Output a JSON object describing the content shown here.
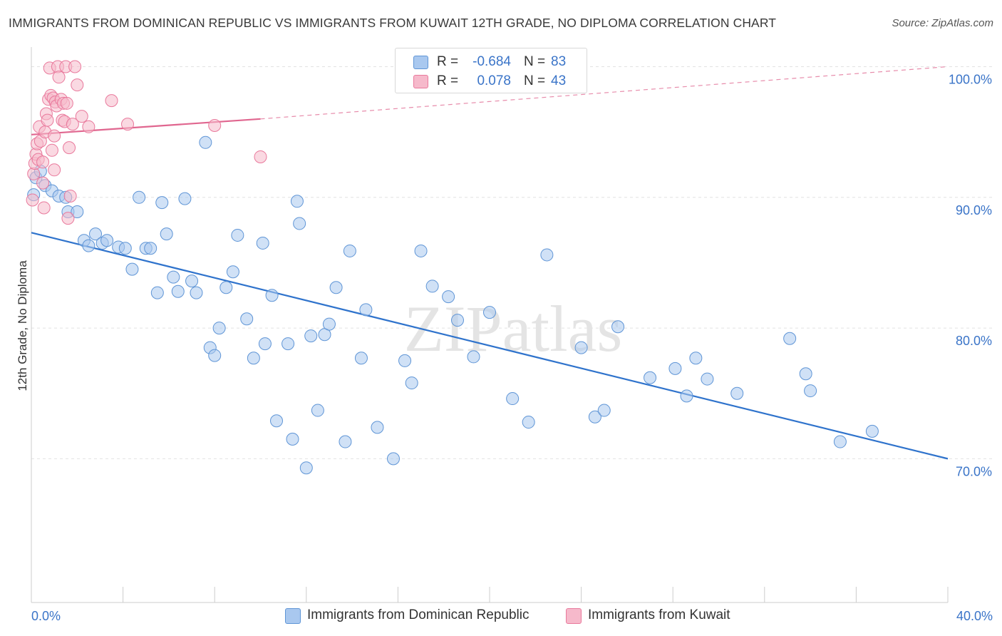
{
  "title": "IMMIGRANTS FROM DOMINICAN REPUBLIC VS IMMIGRANTS FROM KUWAIT 12TH GRADE, NO DIPLOMA CORRELATION CHART",
  "source": "Source: ZipAtlas.com",
  "watermark": "ZIPatlas",
  "legend": {
    "rows": [
      {
        "r_label": "R =",
        "r_value": "-0.684",
        "n_label": "N =",
        "n_value": "83",
        "color": "#a9c8ef",
        "value_color": "#3a74c8"
      },
      {
        "r_label": "R =",
        "r_value": "0.078",
        "n_label": "N =",
        "n_value": "43",
        "color": "#f6b9cb",
        "value_color": "#3a74c8"
      }
    ]
  },
  "colors": {
    "blue_fill": "#a9c8ef",
    "blue_stroke": "#5f95d6",
    "blue_line": "#2f73cc",
    "pink_fill": "#f6b9cb",
    "pink_stroke": "#e9799c",
    "pink_line": "#e0668f",
    "axis_text": "#3a74c8",
    "grid": "#e2e2e2"
  },
  "chart_data": {
    "type": "scatter",
    "title": "IMMIGRANTS FROM DOMINICAN REPUBLIC VS IMMIGRANTS FROM KUWAIT 12TH GRADE, NO DIPLOMA CORRELATION CHART",
    "xlabel": "",
    "ylabel": "12th Grade, No Diploma",
    "xlim": [
      0,
      40
    ],
    "ylim": [
      59,
      101.5
    ],
    "x_ticks": [
      "0.0%",
      "40.0%"
    ],
    "y_ticks": [
      {
        "value": 70,
        "label": "70.0%"
      },
      {
        "value": 80,
        "label": "80.0%"
      },
      {
        "value": 90,
        "label": "90.0%"
      },
      {
        "value": 100,
        "label": "100.0%"
      }
    ],
    "grid": true,
    "legend_position": "bottom",
    "series": [
      {
        "name": "Immigrants from Dominican Republic",
        "color": "#a9c8ef",
        "trend": {
          "x0": 0,
          "y0": 87.3,
          "x1": 40,
          "y1": 70.0,
          "dashed_to": null
        },
        "points": [
          [
            0.1,
            90.2
          ],
          [
            0.2,
            91.5
          ],
          [
            0.4,
            92.0
          ],
          [
            0.6,
            90.9
          ],
          [
            0.9,
            90.5
          ],
          [
            1.2,
            90.1
          ],
          [
            1.5,
            90.0
          ],
          [
            1.6,
            88.9
          ],
          [
            2.0,
            88.9
          ],
          [
            2.3,
            86.7
          ],
          [
            2.5,
            86.3
          ],
          [
            2.8,
            87.2
          ],
          [
            3.1,
            86.5
          ],
          [
            3.3,
            86.7
          ],
          [
            3.8,
            86.2
          ],
          [
            4.1,
            86.1
          ],
          [
            4.4,
            84.5
          ],
          [
            4.7,
            90.0
          ],
          [
            5.0,
            86.1
          ],
          [
            5.2,
            86.1
          ],
          [
            5.5,
            82.7
          ],
          [
            5.7,
            89.6
          ],
          [
            5.9,
            87.2
          ],
          [
            6.2,
            83.9
          ],
          [
            6.4,
            82.8
          ],
          [
            6.7,
            89.9
          ],
          [
            7.0,
            83.6
          ],
          [
            7.2,
            82.7
          ],
          [
            7.6,
            94.2
          ],
          [
            7.8,
            78.5
          ],
          [
            8.0,
            77.9
          ],
          [
            8.2,
            80.0
          ],
          [
            8.5,
            83.1
          ],
          [
            8.8,
            84.3
          ],
          [
            9.0,
            87.1
          ],
          [
            9.4,
            80.7
          ],
          [
            9.7,
            77.7
          ],
          [
            10.1,
            86.5
          ],
          [
            10.2,
            78.8
          ],
          [
            10.5,
            82.5
          ],
          [
            10.7,
            72.9
          ],
          [
            11.2,
            78.8
          ],
          [
            11.4,
            71.5
          ],
          [
            11.6,
            89.7
          ],
          [
            11.7,
            88.0
          ],
          [
            12.0,
            69.3
          ],
          [
            12.2,
            79.4
          ],
          [
            12.5,
            73.7
          ],
          [
            12.8,
            79.5
          ],
          [
            13.0,
            80.3
          ],
          [
            13.3,
            83.1
          ],
          [
            13.7,
            71.3
          ],
          [
            13.9,
            85.9
          ],
          [
            14.4,
            77.7
          ],
          [
            14.6,
            81.4
          ],
          [
            15.1,
            72.4
          ],
          [
            15.8,
            70.0
          ],
          [
            16.3,
            77.5
          ],
          [
            16.6,
            75.8
          ],
          [
            17.0,
            85.9
          ],
          [
            17.5,
            83.2
          ],
          [
            18.2,
            82.4
          ],
          [
            18.6,
            80.6
          ],
          [
            19.3,
            77.8
          ],
          [
            20.0,
            81.2
          ],
          [
            21.0,
            74.6
          ],
          [
            21.7,
            72.8
          ],
          [
            22.5,
            85.6
          ],
          [
            24.0,
            78.5
          ],
          [
            24.6,
            73.2
          ],
          [
            25.0,
            73.7
          ],
          [
            25.6,
            80.1
          ],
          [
            27.0,
            76.2
          ],
          [
            28.1,
            76.9
          ],
          [
            28.6,
            74.8
          ],
          [
            29.0,
            77.7
          ],
          [
            29.5,
            76.1
          ],
          [
            30.8,
            75.0
          ],
          [
            33.1,
            79.2
          ],
          [
            33.8,
            76.5
          ],
          [
            34.0,
            75.2
          ],
          [
            35.3,
            71.3
          ],
          [
            36.7,
            72.1
          ]
        ]
      },
      {
        "name": "Immigrants from Kuwait",
        "color": "#f6b9cb",
        "trend": {
          "x0": 0,
          "y0": 94.8,
          "x1": 10,
          "y1": 96.0,
          "dashed_to": [
            40,
            100.0
          ]
        },
        "points": [
          [
            0.05,
            89.8
          ],
          [
            0.1,
            91.8
          ],
          [
            0.15,
            92.6
          ],
          [
            0.2,
            93.3
          ],
          [
            0.25,
            94.1
          ],
          [
            0.3,
            92.9
          ],
          [
            0.35,
            95.4
          ],
          [
            0.4,
            94.3
          ],
          [
            0.5,
            92.7
          ],
          [
            0.55,
            89.2
          ],
          [
            0.6,
            95.0
          ],
          [
            0.65,
            96.4
          ],
          [
            0.7,
            95.9
          ],
          [
            0.75,
            97.5
          ],
          [
            0.8,
            99.9
          ],
          [
            0.85,
            97.8
          ],
          [
            0.9,
            93.6
          ],
          [
            0.95,
            97.6
          ],
          [
            1.0,
            92.1
          ],
          [
            1.05,
            97.3
          ],
          [
            1.1,
            97.0
          ],
          [
            1.15,
            100.0
          ],
          [
            1.2,
            99.2
          ],
          [
            1.3,
            97.5
          ],
          [
            1.35,
            95.9
          ],
          [
            1.4,
            97.2
          ],
          [
            1.45,
            95.8
          ],
          [
            1.5,
            100.0
          ],
          [
            1.55,
            97.2
          ],
          [
            1.6,
            88.4
          ],
          [
            1.65,
            93.8
          ],
          [
            1.7,
            90.1
          ],
          [
            1.8,
            95.6
          ],
          [
            1.9,
            100.0
          ],
          [
            2.0,
            98.6
          ],
          [
            2.2,
            96.2
          ],
          [
            2.5,
            95.4
          ],
          [
            3.5,
            97.4
          ],
          [
            4.2,
            95.6
          ],
          [
            8.0,
            95.5
          ],
          [
            10.0,
            93.1
          ],
          [
            0.5,
            91.1
          ],
          [
            1.0,
            94.7
          ]
        ]
      }
    ]
  },
  "bottom_legend": [
    {
      "label": "Immigrants from Dominican Republic",
      "color": "#a9c8ef"
    },
    {
      "label": "Immigrants from Kuwait",
      "color": "#f6b9cb"
    }
  ]
}
